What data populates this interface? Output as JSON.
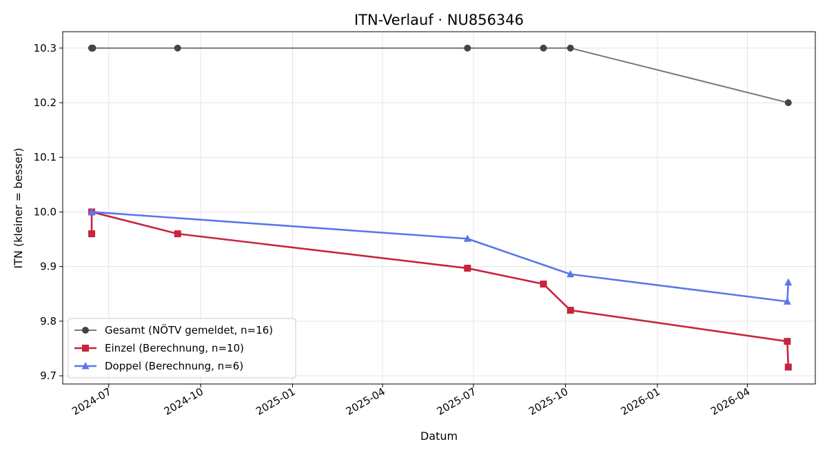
{
  "chart_data": {
    "type": "line",
    "title": "ITN-Verlauf · NU856346",
    "xlabel": "Datum",
    "ylabel": "ITN  (kleiner = besser)",
    "xlim": [
      "2024-05-16",
      "2026-06-08"
    ],
    "ylim": [
      9.685,
      10.33
    ],
    "x_ticks": [
      "2024-07",
      "2024-10",
      "2025-01",
      "2025-04",
      "2025-07",
      "2025-10",
      "2026-01",
      "2026-04"
    ],
    "y_ticks": [
      9.7,
      9.8,
      9.9,
      10.0,
      10.1,
      10.2,
      10.3
    ],
    "grid": true,
    "legend_position": "lower-left",
    "series": [
      {
        "name": "Gesamt (NÖTV gemeldet, n=16)",
        "color": "#777777",
        "marker_color": "#444444",
        "marker": "circle",
        "points": [
          {
            "x": "2024-06-14",
            "y": 10.3
          },
          {
            "x": "2024-06-14",
            "y": 10.3
          },
          {
            "x": "2024-06-15",
            "y": 10.3
          },
          {
            "x": "2024-06-15",
            "y": 10.3
          },
          {
            "x": "2024-09-08",
            "y": 10.3
          },
          {
            "x": "2025-06-25",
            "y": 10.3
          },
          {
            "x": "2025-09-09",
            "y": 10.3
          },
          {
            "x": "2025-10-06",
            "y": 10.3
          },
          {
            "x": "2026-05-12",
            "y": 10.2
          }
        ]
      },
      {
        "name": "Einzel (Berechnung, n=10)",
        "color": "#c8233f",
        "marker": "square",
        "points": [
          {
            "x": "2024-06-14",
            "y": 9.96
          },
          {
            "x": "2024-06-14",
            "y": 10.0
          },
          {
            "x": "2024-09-08",
            "y": 9.96
          },
          {
            "x": "2025-06-25",
            "y": 9.897
          },
          {
            "x": "2025-09-09",
            "y": 9.868
          },
          {
            "x": "2025-10-06",
            "y": 9.82
          },
          {
            "x": "2026-05-11",
            "y": 9.763
          },
          {
            "x": "2026-05-12",
            "y": 9.716
          }
        ]
      },
      {
        "name": "Doppel (Berechnung, n=6)",
        "color": "#5877ea",
        "marker": "triangle",
        "points": [
          {
            "x": "2024-06-14",
            "y": 10.0
          },
          {
            "x": "2025-06-25",
            "y": 9.951
          },
          {
            "x": "2025-10-06",
            "y": 9.886
          },
          {
            "x": "2026-05-11",
            "y": 9.836
          },
          {
            "x": "2026-05-12",
            "y": 9.871
          }
        ]
      }
    ]
  }
}
